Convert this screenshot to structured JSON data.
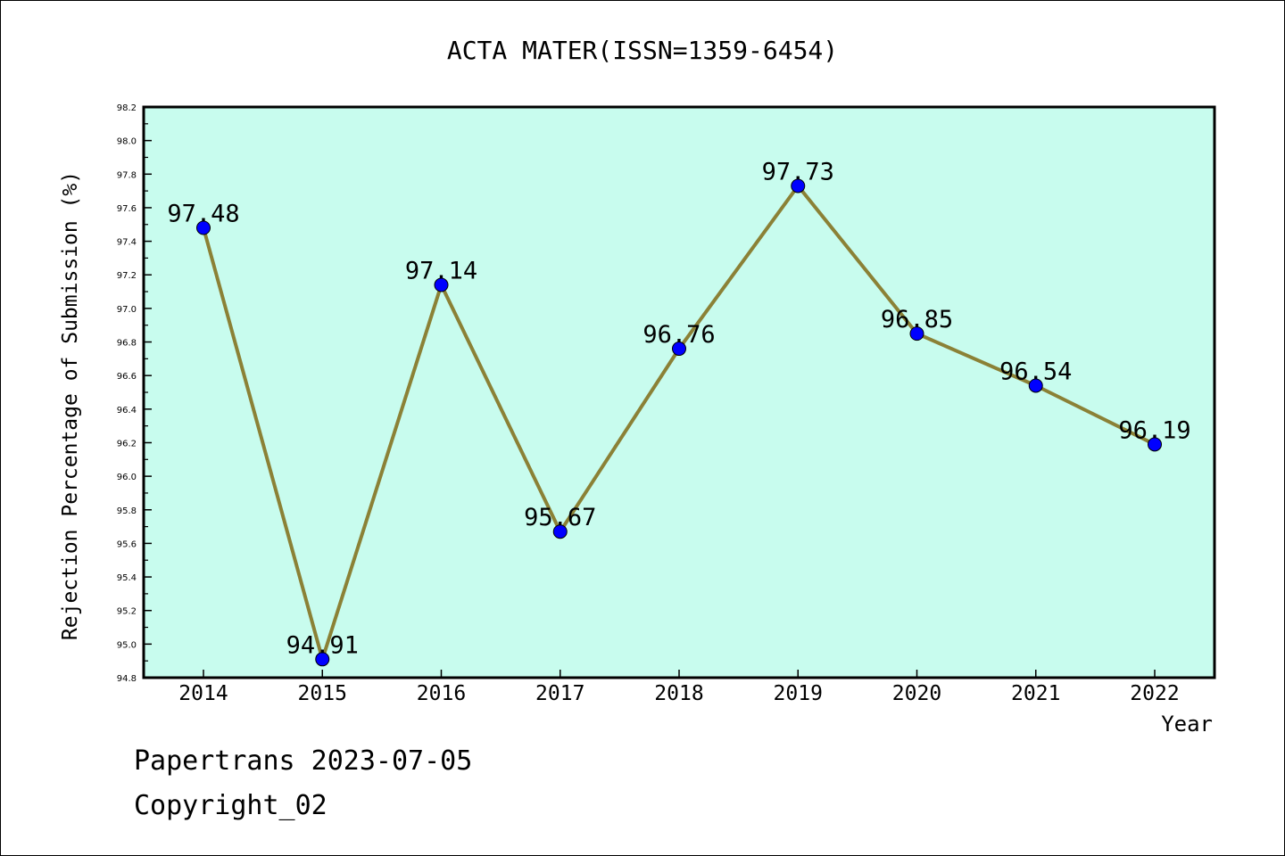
{
  "colors": {
    "plot_background": "#c8fcee",
    "line": "#8b8136",
    "marker": "#0000ff",
    "axis": "#000000"
  },
  "chart_data": {
    "type": "line",
    "title": "ACTA MATER(ISSN=1359-6454)",
    "xlabel": "Year",
    "ylabel": "Rejection Percentage of Submission (%)",
    "categories": [
      "2014",
      "2015",
      "2016",
      "2017",
      "2018",
      "2019",
      "2020",
      "2021",
      "2022"
    ],
    "series": [
      {
        "values": [
          97.48,
          94.91,
          97.14,
          95.67,
          96.76,
          97.73,
          96.85,
          96.54,
          96.19
        ]
      }
    ],
    "data_labels": [
      "97.48",
      "94.91",
      "97.14",
      "95.67",
      "96.76",
      "97.73",
      "96.85",
      "96.54",
      "96.19"
    ],
    "ylim": [
      94.8,
      98.2
    ],
    "yticks": [
      "94.8",
      "95.0",
      "95.2",
      "95.4",
      "95.6",
      "95.8",
      "96.0",
      "96.2",
      "96.4",
      "96.6",
      "96.8",
      "97.0",
      "97.2",
      "97.4",
      "97.6",
      "97.8",
      "98.0",
      "98.2"
    ],
    "grid": false,
    "marker": "circle"
  },
  "footer": {
    "line1": "Papertrans 2023-07-05",
    "line2": "Copyright_02"
  }
}
